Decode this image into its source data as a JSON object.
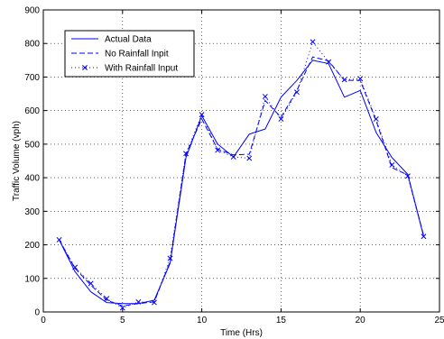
{
  "chart_data": {
    "type": "line",
    "xlabel": "Time (Hrs)",
    "ylabel": "Traffic Volume (vph)",
    "xlim": [
      0,
      25
    ],
    "ylim": [
      0,
      900
    ],
    "x_ticks": [
      "0",
      "5",
      "10",
      "15",
      "20",
      "25"
    ],
    "y_ticks": [
      "0",
      "100",
      "200",
      "300",
      "400",
      "500",
      "600",
      "700",
      "800",
      "900"
    ],
    "grid": "dotted",
    "legend_position": "top-left",
    "series": [
      {
        "name": "Actual Data",
        "style": "solid",
        "marker": "none",
        "x": [
          1,
          2,
          3,
          4,
          5,
          6,
          7,
          8,
          9,
          10,
          11,
          12,
          13,
          14,
          15,
          16,
          17,
          18,
          19,
          20,
          21,
          22,
          23,
          24
        ],
        "y": [
          215,
          120,
          60,
          28,
          25,
          25,
          35,
          145,
          460,
          585,
          500,
          462,
          530,
          545,
          640,
          690,
          750,
          740,
          640,
          660,
          535,
          460,
          410,
          225
        ]
      },
      {
        "name": "No Rainfall Inpit",
        "style": "dashed",
        "marker": "none",
        "x": [
          1,
          2,
          3,
          4,
          5,
          6,
          7,
          8,
          9,
          10,
          11,
          12,
          13,
          14,
          15,
          16,
          17,
          18,
          19,
          20,
          21,
          22,
          23,
          24
        ],
        "y": [
          215,
          130,
          80,
          35,
          18,
          25,
          30,
          150,
          470,
          575,
          485,
          468,
          470,
          630,
          580,
          660,
          760,
          748,
          690,
          690,
          570,
          430,
          408,
          228
        ]
      },
      {
        "name": "With Rainfall Input",
        "style": "dotted",
        "marker": "x",
        "x": [
          1,
          2,
          3,
          4,
          5,
          6,
          7,
          8,
          9,
          10,
          11,
          12,
          13,
          14,
          15,
          16,
          17,
          18,
          19,
          20,
          21,
          22,
          23,
          24
        ],
        "y": [
          215,
          133,
          85,
          40,
          12,
          30,
          28,
          160,
          472,
          588,
          482,
          462,
          458,
          642,
          575,
          655,
          805,
          745,
          692,
          695,
          575,
          438,
          405,
          225
        ]
      }
    ],
    "color": "#0000ff"
  }
}
